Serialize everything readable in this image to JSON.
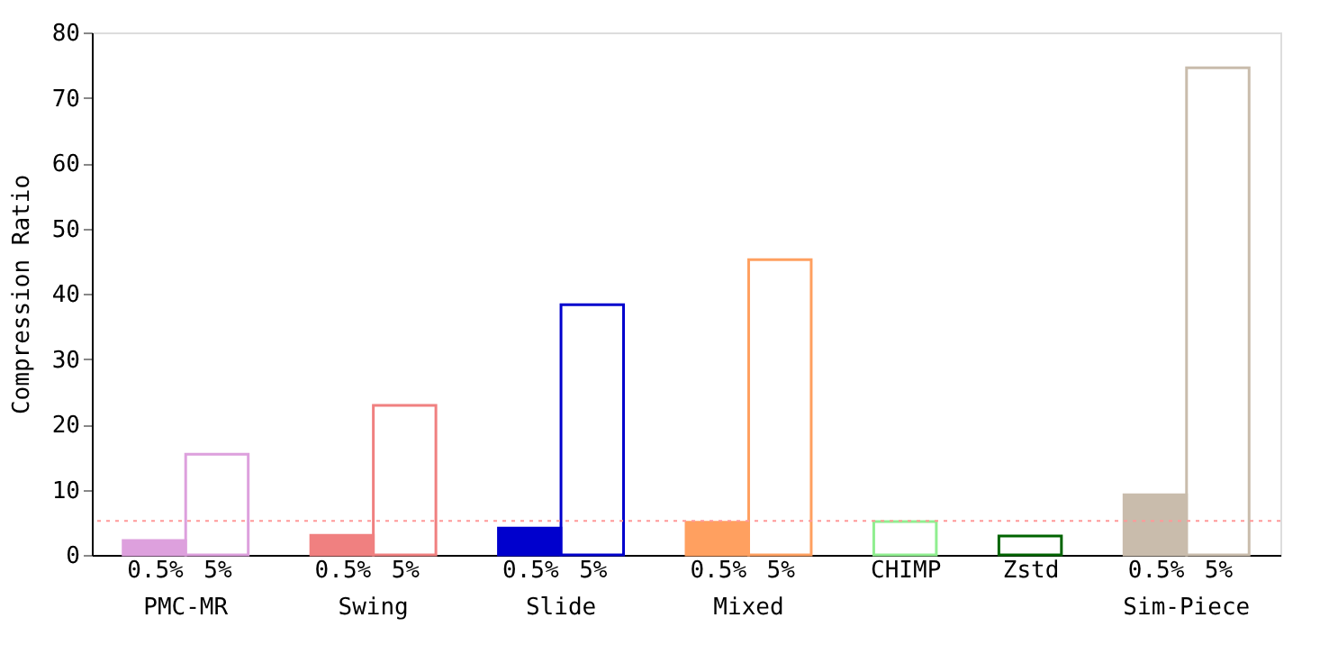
{
  "chart_data": {
    "type": "bar",
    "ylabel": "Compression Ratio",
    "categories": [
      "0.5%",
      "5%",
      "0.5%",
      "5%",
      "0.5%",
      "5%",
      "0.5%",
      "5%",
      "CHIMP",
      "Zstd",
      "0.5%",
      "5%"
    ],
    "series": [
      {
        "values": [
          2.2,
          null,
          3.0,
          null,
          4.1,
          null,
          5.0,
          null,
          null,
          null,
          9.2,
          null
        ],
        "colors": [
          "#dda0dd",
          null,
          "#f08080",
          null,
          "#0000cd",
          null,
          "#ffa060",
          null,
          null,
          null,
          "#c9bcac",
          null
        ]
      },
      {
        "values": [
          null,
          15.4,
          null,
          22.9,
          null,
          38.3,
          null,
          45.2,
          5.1,
          2.9,
          null,
          74.6
        ],
        "colors": [
          null,
          "#dda0dd",
          null,
          "#f08080",
          null,
          "#0000cd",
          null,
          "#ffa060",
          "#90ee90",
          "#006400",
          null,
          "#c9bcac"
        ]
      }
    ],
    "annotations": [
      "PMC-MR",
      "Swing",
      "Slide",
      "Mixed",
      "Sim-Piece"
    ],
    "ylim": [
      0,
      80
    ],
    "yticks": [
      0,
      10,
      20,
      30,
      40,
      50,
      60,
      70,
      80
    ],
    "ref_lines": [
      {
        "axis": "y",
        "value": 5.2,
        "color": "#ff9999",
        "line_style": "dotted"
      }
    ],
    "grid": false
  }
}
